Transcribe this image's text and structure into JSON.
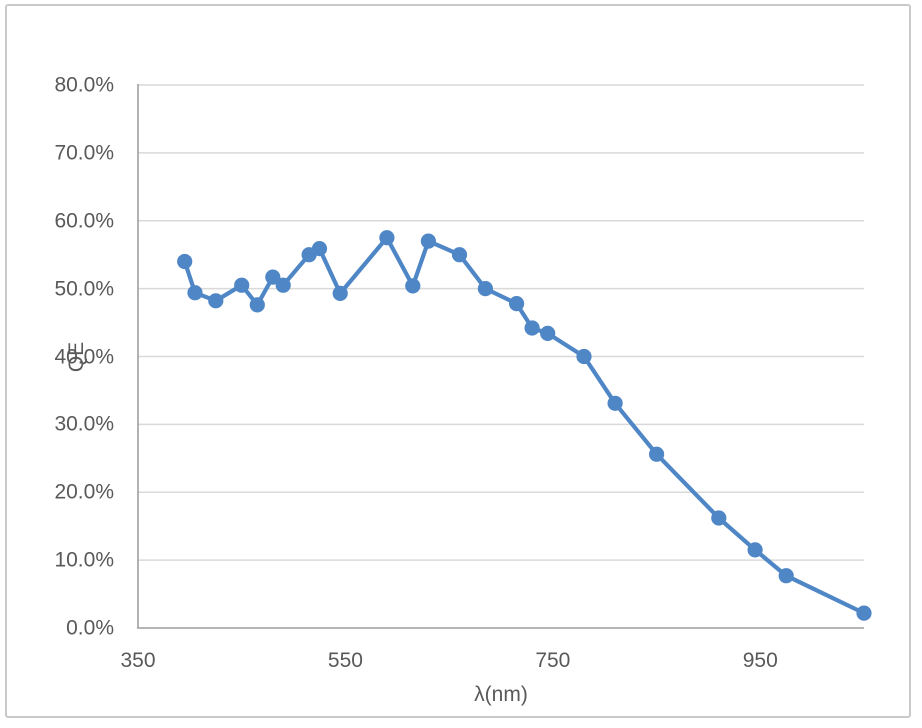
{
  "chart_data": {
    "type": "line",
    "title": "",
    "xlabel": "λ(nm)",
    "ylabel": "QE",
    "series": [
      {
        "name": "QE",
        "x": [
          395,
          405,
          425,
          450,
          465,
          480,
          490,
          515,
          525,
          545,
          590,
          615,
          630,
          660,
          685,
          715,
          730,
          745,
          780,
          810,
          850,
          910,
          945,
          975,
          1050
        ],
        "y_percent": [
          54.0,
          49.4,
          48.2,
          50.5,
          47.6,
          51.7,
          50.5,
          55.0,
          55.9,
          49.3,
          57.5,
          50.4,
          57.0,
          55.0,
          50.0,
          47.8,
          44.2,
          43.4,
          40.0,
          33.1,
          25.6,
          16.2,
          11.5,
          7.7,
          2.2
        ]
      }
    ],
    "xlim": [
      350,
      1050
    ],
    "ylim_percent": [
      0,
      80
    ],
    "x_ticks": [
      350,
      550,
      750,
      950
    ],
    "x_tick_labels": [
      "350",
      "550",
      "750",
      "950"
    ],
    "y_ticks_percent": [
      0,
      10,
      20,
      30,
      40,
      50,
      60,
      70,
      80
    ],
    "y_tick_labels": [
      "0.0%",
      "10.0%",
      "20.0%",
      "30.0%",
      "40.0%",
      "50.0%",
      "60.0%",
      "70.0%",
      "80.0%"
    ],
    "grid": "horizontal",
    "legend_position": "none",
    "marker_style": "filled-circle",
    "colors": {
      "line": "#4E86C6",
      "marker": "#4E86C6",
      "gridline": "#d9d9d9",
      "axis_line": "#9e9e9e",
      "tick_text": "#595959",
      "chart_border": "#c9c9c9",
      "background": "#ffffff"
    }
  }
}
